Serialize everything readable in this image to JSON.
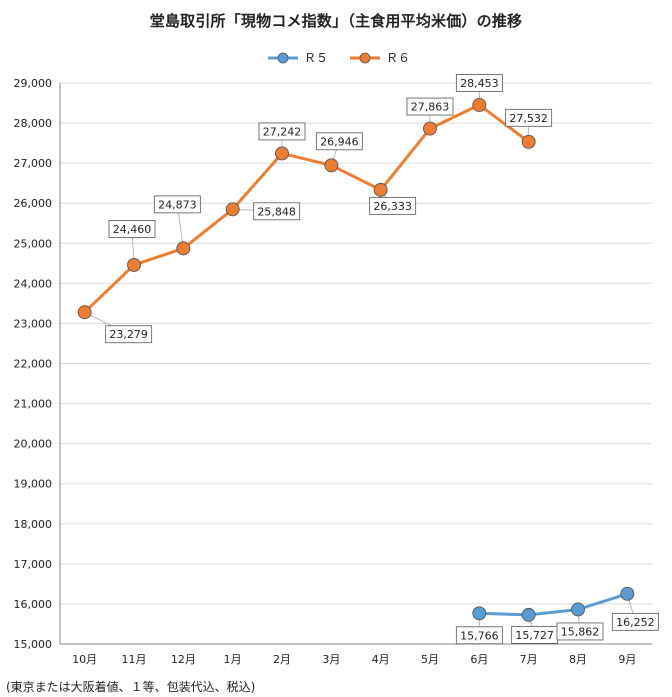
{
  "chart_data": {
    "type": "line",
    "title": "堂島取引所「現物コメ指数」（主食用平均米価）の推移",
    "note": "(東京または大阪着値、１等、包装代込、税込)",
    "categories": [
      "10月",
      "11月",
      "12月",
      "1月",
      "2月",
      "3月",
      "4月",
      "5月",
      "6月",
      "7月",
      "8月",
      "9月"
    ],
    "ylim": [
      15000,
      29000
    ],
    "yticks": [
      15000,
      16000,
      17000,
      18000,
      19000,
      20000,
      21000,
      22000,
      23000,
      24000,
      25000,
      26000,
      27000,
      28000,
      29000
    ],
    "ytick_labels": [
      "15,000",
      "16,000",
      "17,000",
      "18,000",
      "19,000",
      "20,000",
      "21,000",
      "22,000",
      "23,000",
      "24,000",
      "25,000",
      "26,000",
      "27,000",
      "28,000",
      "29,000"
    ],
    "grid": true,
    "legend_position": "top-center",
    "series": [
      {
        "name": "Ｒ５",
        "color": "#5b9bd5",
        "values": [
          null,
          null,
          null,
          null,
          null,
          null,
          null,
          null,
          15766,
          15727,
          15862,
          16252
        ],
        "labels": [
          "",
          "",
          "",
          "",
          "",
          "",
          "",
          "",
          "15,766",
          "15,727",
          "15,862",
          "16,252"
        ]
      },
      {
        "name": "Ｒ６",
        "color": "#ed7d31",
        "values": [
          23279,
          24460,
          24873,
          25848,
          27242,
          26946,
          26333,
          27863,
          28453,
          27532,
          null,
          null
        ],
        "labels": [
          "23,279",
          "24,460",
          "24,873",
          "25,848",
          "27,242",
          "26,946",
          "26,333",
          "27,863",
          "28,453",
          "27,532",
          "",
          ""
        ]
      }
    ]
  }
}
